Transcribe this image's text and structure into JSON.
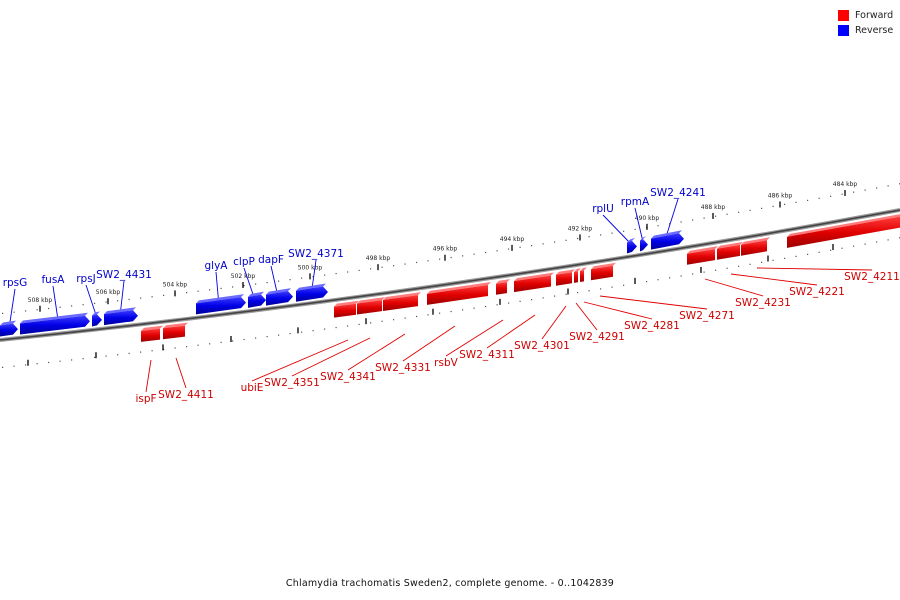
{
  "legend": {
    "forward_label": "Forward",
    "reverse_label": "Reverse",
    "forward_color": "#ff0000",
    "reverse_color": "#0000ff"
  },
  "caption": "Chlamydia trachomatis Sweden2, complete genome. - 0..1042839",
  "axis_ticks": [
    "508 kbp",
    "506 kbp",
    "504 kbp",
    "502 kbp",
    "500 kbp",
    "498 kbp",
    "496 kbp",
    "494 kbp",
    "492 kbp",
    "490 kbp",
    "488 kbp",
    "486 kbp",
    "484 kbp"
  ],
  "reverse_genes": [
    "rpsG",
    "fusA",
    "rpsJ",
    "SW2_4431",
    "glyA",
    "clpP",
    "dapF",
    "SW2_4371",
    "rplU",
    "rpmA",
    "SW2_4241"
  ],
  "forward_genes": [
    "ispF",
    "SW2_4411",
    "ubiE",
    "SW2_4351",
    "SW2_4341",
    "SW2_4331",
    "rsbV",
    "SW2_4311",
    "SW2_4301",
    "SW2_4291",
    "SW2_4281",
    "SW2_4271",
    "SW2_4231",
    "SW2_4221",
    "SW2_4211"
  ]
}
